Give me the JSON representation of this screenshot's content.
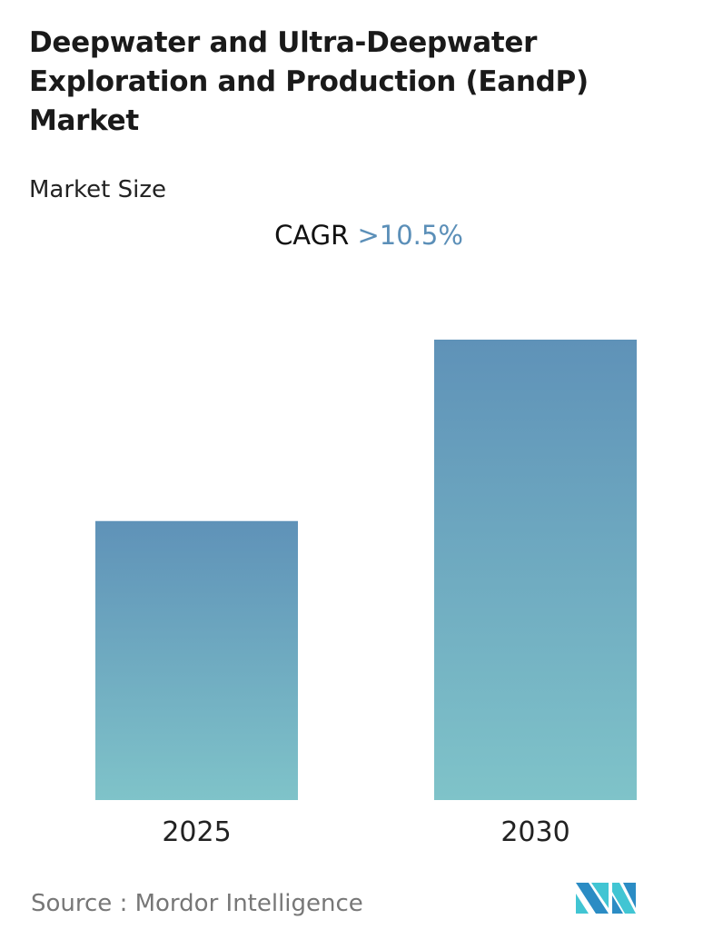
{
  "title": "Deepwater and Ultra-Deepwater Exploration and Production (EandP) Market",
  "subtitle": "Market Size",
  "cagr": {
    "label": "CAGR",
    "value": ">10.5%"
  },
  "source": "Source :  Mordor Intelligence",
  "logo": {
    "text": "Mordor Intelligence",
    "colors": [
      "#2b8cc4",
      "#41c5d3"
    ]
  },
  "chart_data": {
    "type": "bar",
    "title": "",
    "xlabel": "",
    "ylabel": "",
    "categories": [
      "2025",
      "2030"
    ],
    "values": [
      60.6,
      100
    ],
    "ylim": [
      0,
      100
    ],
    "grid": false,
    "bar_gradient": {
      "top": "#5f92b8",
      "bottom": "#7fc3c9"
    }
  }
}
